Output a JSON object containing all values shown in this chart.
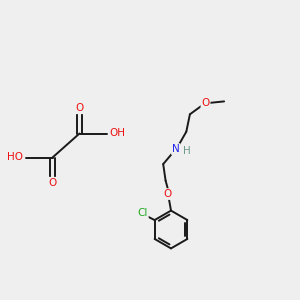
{
  "bg_color": "#efefef",
  "atom_colors": {
    "C": "#1a1a1a",
    "H": "#6a9a8a",
    "O": "#ee1111",
    "N": "#2222ee",
    "Cl": "#22aa22"
  },
  "bond_color": "#1a1a1a",
  "bond_width": 1.4,
  "figsize": [
    3.0,
    3.0
  ],
  "dpi": 100,
  "xlim": [
    0,
    10
  ],
  "ylim": [
    0,
    10
  ]
}
